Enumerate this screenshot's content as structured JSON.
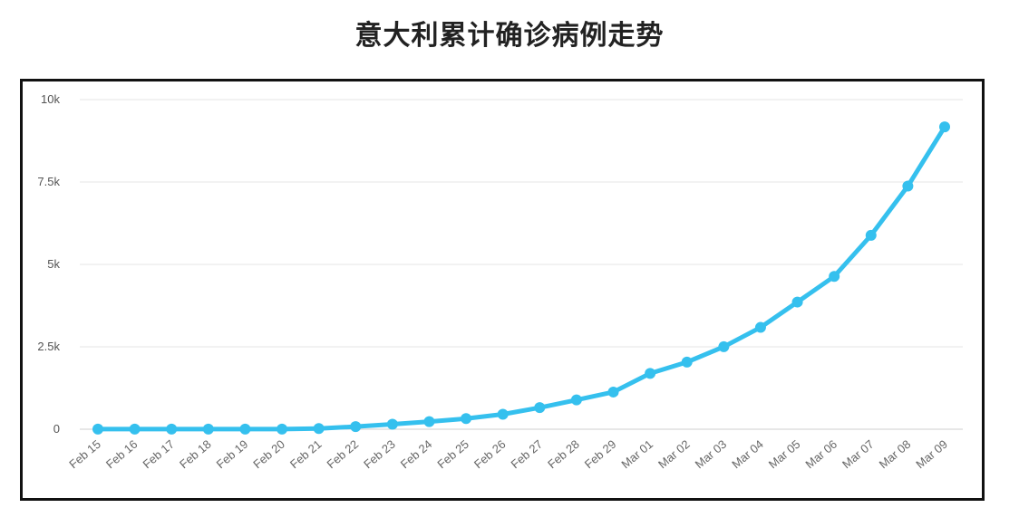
{
  "chart_data": {
    "type": "line",
    "title": "意大利累计确诊病例走势",
    "xlabel": "",
    "ylabel": "",
    "ylim": [
      0,
      10000
    ],
    "yticks": [
      {
        "value": 0,
        "label": "0"
      },
      {
        "value": 2500,
        "label": "2.5k"
      },
      {
        "value": 5000,
        "label": "5k"
      },
      {
        "value": 7500,
        "label": "7.5k"
      },
      {
        "value": 10000,
        "label": "10k"
      }
    ],
    "grid": true,
    "categories": [
      "Feb 15",
      "Feb 16",
      "Feb 17",
      "Feb 18",
      "Feb 19",
      "Feb 20",
      "Feb 21",
      "Feb 22",
      "Feb 23",
      "Feb 24",
      "Feb 25",
      "Feb 26",
      "Feb 27",
      "Feb 28",
      "Feb 29",
      "Mar 01",
      "Mar 02",
      "Mar 03",
      "Mar 04",
      "Mar 05",
      "Mar 06",
      "Mar 07",
      "Mar 08",
      "Mar 09"
    ],
    "series": [
      {
        "color": "#35c0ee",
        "values": [
          3,
          3,
          3,
          3,
          3,
          3,
          20,
          79,
          150,
          229,
          322,
          453,
          655,
          888,
          1128,
          1694,
          2036,
          2502,
          3089,
          3858,
          4636,
          5883,
          7375,
          9172
        ]
      }
    ]
  }
}
